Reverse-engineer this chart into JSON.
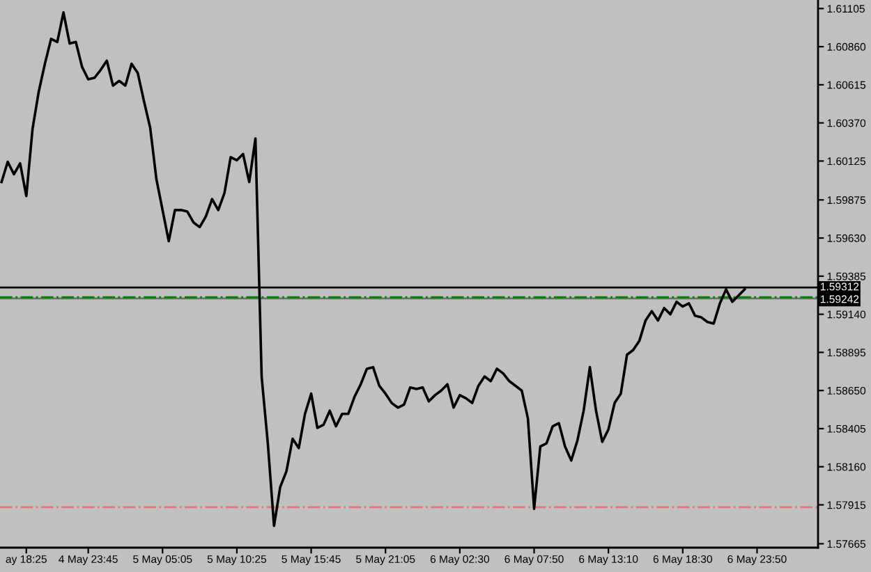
{
  "chart_data": {
    "type": "line",
    "color": "#000000",
    "categories": [
      null,
      null,
      null,
      null,
      "ay 18:25",
      null,
      null,
      null,
      null,
      null,
      null,
      null,
      null,
      null,
      "4 May 23:45",
      null,
      null,
      null,
      null,
      null,
      null,
      null,
      null,
      null,
      null,
      null,
      "5 May 05:05",
      null,
      null,
      null,
      null,
      null,
      null,
      null,
      null,
      null,
      null,
      null,
      "5 May 10:25",
      null,
      null,
      null,
      null,
      null,
      null,
      null,
      null,
      null,
      null,
      null,
      "5 May 15:45",
      null,
      null,
      null,
      null,
      null,
      null,
      null,
      null,
      null,
      null,
      null,
      "5 May 21:05",
      null,
      null,
      null,
      null,
      null,
      null,
      null,
      null,
      null,
      null,
      null,
      "6 May 02:30",
      null,
      null,
      null,
      null,
      null,
      null,
      null,
      null,
      null,
      null,
      null,
      "6 May 07:50",
      null,
      null,
      null,
      null,
      null,
      null,
      null,
      null,
      null,
      null,
      null,
      "6 May 13:10",
      null,
      null,
      null,
      null,
      null,
      null,
      null,
      null,
      null,
      null,
      null,
      "6 May 18:30",
      null,
      null,
      null,
      null,
      null,
      null,
      null,
      null,
      null,
      null,
      null,
      "6 May 23:50",
      null,
      null,
      null,
      null,
      null,
      null,
      null,
      null,
      null
    ],
    "values": [
      1.5999,
      1.6012,
      1.6004,
      1.6011,
      1.599,
      1.6033,
      1.6057,
      1.6075,
      1.6091,
      1.6089,
      1.6108,
      1.6088,
      1.6089,
      1.6073,
      1.6065,
      1.6066,
      1.6071,
      1.6077,
      1.6061,
      1.6064,
      1.6061,
      1.6075,
      1.6069,
      1.6051,
      1.6034,
      1.6001,
      1.5981,
      1.5961,
      1.5981,
      1.5981,
      1.598,
      1.5973,
      1.597,
      1.5977,
      1.5988,
      1.5981,
      1.5992,
      1.6015,
      1.6013,
      1.6017,
      1.5999,
      1.6027,
      1.5874,
      1.5831,
      1.5778,
      1.5803,
      1.5813,
      1.5834,
      1.5828,
      1.585,
      1.5863,
      1.5841,
      1.5843,
      1.5852,
      1.5842,
      1.585,
      1.585,
      1.5861,
      1.5869,
      1.5879,
      1.588,
      1.5868,
      1.5863,
      1.5857,
      1.5854,
      1.5856,
      1.5867,
      1.5866,
      1.5867,
      1.5858,
      1.5862,
      1.5865,
      1.5869,
      1.5854,
      1.5862,
      1.586,
      1.5857,
      1.5868,
      1.5874,
      1.5871,
      1.5879,
      1.5876,
      1.5871,
      1.5868,
      1.5865,
      1.5847,
      1.5789,
      1.5829,
      1.5831,
      1.5842,
      1.5844,
      1.5829,
      1.582,
      1.5833,
      1.5852,
      1.588,
      1.5852,
      1.5832,
      1.584,
      1.5857,
      1.5863,
      1.5888,
      1.5891,
      1.5897,
      1.591,
      1.5916,
      1.591,
      1.5918,
      1.5914,
      1.5922,
      1.5919,
      1.5921,
      1.5913,
      1.5912,
      1.5909,
      1.5908,
      1.5921,
      1.593,
      1.5922,
      1.5926,
      1.593,
      null,
      null,
      null,
      null,
      null,
      null,
      null,
      null,
      null,
      null,
      null
    ],
    "ylim": [
      1.5764,
      1.6116
    ],
    "yticks": [
      1.61105,
      {
        "value": 1.6086,
        "label": "1.60860"
      },
      1.60615,
      {
        "value": 1.6037,
        "label": "1.60370"
      },
      1.60125,
      1.59875,
      {
        "value": 1.5963,
        "label": "1.59630"
      },
      1.59385,
      {
        "value": 1.5914,
        "label": "1.59140"
      },
      1.58895,
      {
        "value": 1.5865,
        "label": "1.58650"
      },
      1.58405,
      {
        "value": 1.5816,
        "label": "1.58160"
      },
      1.57915,
      1.57665
    ],
    "ref_lines": [
      {
        "axis": "y",
        "value": 1.59312,
        "label": "1.59312",
        "color": "#000000",
        "line_style": "solid"
      },
      {
        "axis": "y",
        "value": 1.59242,
        "label": "1.59242",
        "color": "#707070",
        "line_style": "solid"
      },
      {
        "axis": "y",
        "value": 1.5925,
        "color": "#008000",
        "line_style": "dashdot"
      },
      {
        "axis": "y",
        "value": 1.579,
        "color": "#f07070",
        "line_style": "dashdot"
      }
    ]
  }
}
